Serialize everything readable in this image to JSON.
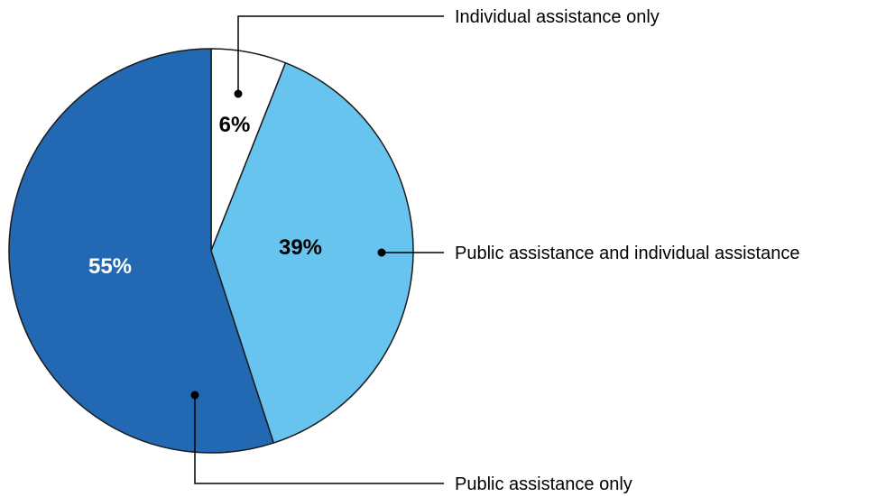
{
  "chart_data": {
    "type": "pie",
    "title": "",
    "categories": [
      "Individual assistance only",
      "Public assistance and individual assistance",
      "Public assistance only"
    ],
    "values": [
      6,
      39,
      55
    ],
    "value_labels": [
      "6%",
      "39%",
      "55%"
    ],
    "colors": [
      "#ffffff",
      "#66c4ef",
      "#2268b2"
    ],
    "label_colors": [
      "#000000",
      "#000000",
      "#ffffff"
    ],
    "start": "12 o'clock",
    "direction": "clockwise",
    "legend": "callout labels with leader lines on the right"
  }
}
